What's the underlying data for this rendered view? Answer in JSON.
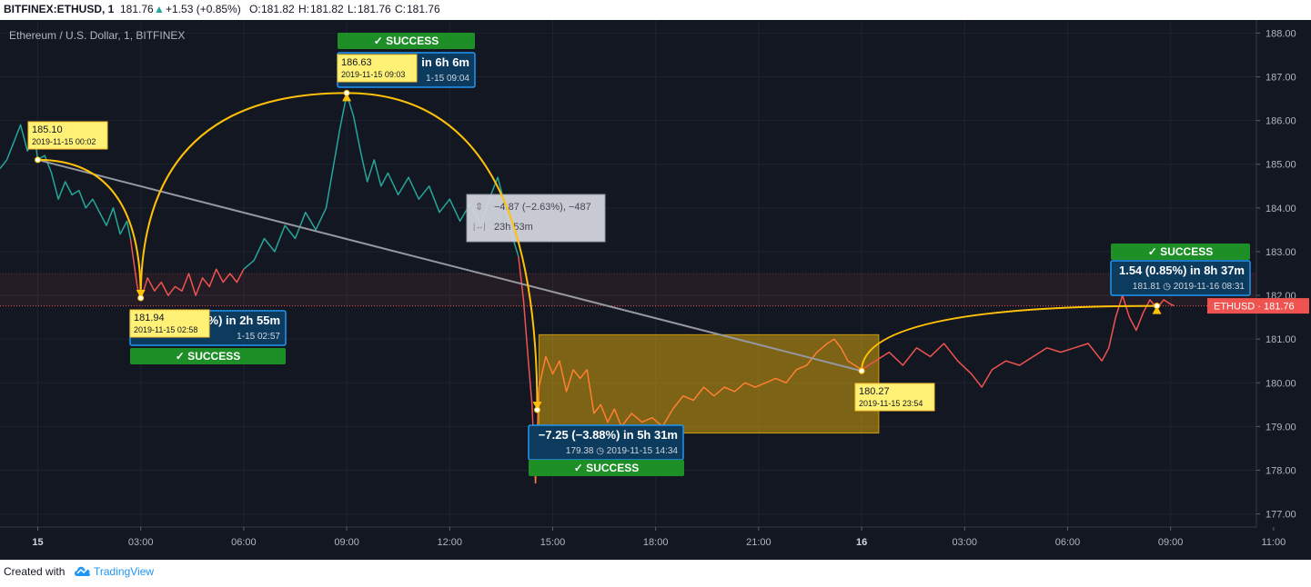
{
  "header": {
    "symbol": "BITFINEX:ETHUSD, 1",
    "last": "181.76",
    "change": "+1.53 (+0.85%)",
    "o_label": "O:",
    "o_value": "181.82",
    "h_label": "H:",
    "h_value": "181.82",
    "l_label": "L:",
    "l_value": "181.76",
    "c_label": "C:",
    "c_value": "181.76"
  },
  "footer": {
    "created": "Created with",
    "brand": "TradingView"
  },
  "chart_data": {
    "type": "line",
    "title": "Ethereum / U.S. Dollar, 1, BITFINEX",
    "ylim": [
      176.7,
      188.3
    ],
    "xlim_hours": [
      -1.1,
      35.5
    ],
    "y_ticks": [
      "188.00",
      "187.00",
      "186.00",
      "185.00",
      "184.00",
      "183.00",
      "182.00",
      "181.00",
      "180.00",
      "179.00",
      "178.00",
      "177.00"
    ],
    "x_ticks": [
      {
        "h": 0,
        "label": "15",
        "bold": true
      },
      {
        "h": 3,
        "label": "03:00"
      },
      {
        "h": 6,
        "label": "06:00"
      },
      {
        "h": 9,
        "label": "09:00"
      },
      {
        "h": 12,
        "label": "12:00"
      },
      {
        "h": 15,
        "label": "15:00"
      },
      {
        "h": 18,
        "label": "18:00"
      },
      {
        "h": 21,
        "label": "21:00"
      },
      {
        "h": 24,
        "label": "16",
        "bold": true
      },
      {
        "h": 27,
        "label": "03:00"
      },
      {
        "h": 30,
        "label": "06:00"
      },
      {
        "h": 33,
        "label": "09:00"
      },
      {
        "h": 36,
        "label": "11:00"
      }
    ],
    "price_label": {
      "text": "ETHUSD · 181.76",
      "y": 181.76
    },
    "colors": {
      "bg": "#131722",
      "teal": "#26a69a",
      "red": "#ef5350",
      "orange": "#ff7f33",
      "yellow": "#ffeb3b",
      "gray": "#9598a1",
      "blue": "#2196f3",
      "green": "#1e8f27"
    },
    "series": [
      {
        "color": "#26a69a",
        "points": [
          [
            -1.1,
            184.9
          ],
          [
            -0.9,
            185.1
          ],
          [
            -0.7,
            185.5
          ],
          [
            -0.5,
            185.9
          ],
          [
            -0.3,
            185.3
          ],
          [
            -0.1,
            185.7
          ],
          [
            0.0,
            185.1
          ],
          [
            0.2,
            185.2
          ],
          [
            0.4,
            184.8
          ],
          [
            0.6,
            184.2
          ],
          [
            0.8,
            184.6
          ],
          [
            1.0,
            184.3
          ],
          [
            1.2,
            184.4
          ],
          [
            1.4,
            184.0
          ],
          [
            1.6,
            184.2
          ],
          [
            1.8,
            183.9
          ],
          [
            2.0,
            183.6
          ],
          [
            2.2,
            184.0
          ],
          [
            2.4,
            183.4
          ],
          [
            2.6,
            183.7
          ],
          [
            2.7,
            183.3
          ]
        ]
      },
      {
        "color": "#ef5350",
        "points": [
          [
            2.7,
            183.3
          ],
          [
            2.9,
            182.2
          ],
          [
            3.0,
            181.9
          ],
          [
            3.2,
            182.4
          ],
          [
            3.4,
            182.1
          ],
          [
            3.6,
            182.3
          ],
          [
            3.8,
            182.0
          ],
          [
            4.0,
            182.2
          ],
          [
            4.2,
            182.1
          ],
          [
            4.4,
            182.5
          ],
          [
            4.6,
            182.0
          ],
          [
            4.8,
            182.4
          ],
          [
            5.0,
            182.2
          ],
          [
            5.2,
            182.6
          ],
          [
            5.4,
            182.3
          ],
          [
            5.6,
            182.5
          ],
          [
            5.8,
            182.3
          ],
          [
            6.0,
            182.6
          ]
        ]
      },
      {
        "color": "#26a69a",
        "points": [
          [
            6.0,
            182.6
          ],
          [
            6.3,
            182.8
          ],
          [
            6.6,
            183.3
          ],
          [
            6.9,
            183.0
          ],
          [
            7.2,
            183.6
          ],
          [
            7.5,
            183.3
          ],
          [
            7.8,
            183.9
          ],
          [
            8.1,
            183.5
          ],
          [
            8.4,
            184.0
          ],
          [
            8.6,
            184.9
          ],
          [
            8.8,
            185.8
          ],
          [
            9.0,
            186.6
          ],
          [
            9.2,
            186.1
          ],
          [
            9.4,
            185.3
          ],
          [
            9.6,
            184.6
          ],
          [
            9.8,
            185.1
          ],
          [
            10.0,
            184.5
          ],
          [
            10.2,
            184.8
          ],
          [
            10.5,
            184.3
          ],
          [
            10.8,
            184.7
          ],
          [
            11.1,
            184.2
          ],
          [
            11.4,
            184.5
          ],
          [
            11.7,
            183.9
          ],
          [
            12.0,
            184.2
          ],
          [
            12.3,
            183.7
          ],
          [
            12.6,
            184.1
          ],
          [
            12.9,
            183.6
          ],
          [
            13.2,
            184.3
          ],
          [
            13.4,
            184.7
          ],
          [
            13.6,
            184.1
          ],
          [
            13.8,
            183.4
          ],
          [
            14.0,
            182.9
          ]
        ]
      },
      {
        "color": "#ef5350",
        "points": [
          [
            14.0,
            182.9
          ],
          [
            14.15,
            181.9
          ],
          [
            14.3,
            180.4
          ],
          [
            14.4,
            179.5
          ],
          [
            14.5,
            177.7
          ]
        ]
      },
      {
        "color": "#ff7f33",
        "points": [
          [
            14.5,
            177.7
          ],
          [
            14.6,
            179.9
          ],
          [
            14.8,
            180.6
          ],
          [
            15.0,
            180.2
          ],
          [
            15.2,
            180.5
          ],
          [
            15.4,
            179.8
          ],
          [
            15.6,
            180.3
          ],
          [
            15.8,
            180.1
          ],
          [
            16.0,
            180.3
          ],
          [
            16.2,
            179.3
          ],
          [
            16.4,
            179.5
          ],
          [
            16.6,
            179.1
          ],
          [
            16.8,
            179.4
          ],
          [
            17.0,
            179.0
          ],
          [
            17.3,
            179.3
          ],
          [
            17.6,
            179.1
          ],
          [
            17.9,
            179.2
          ],
          [
            18.2,
            179.0
          ],
          [
            18.5,
            179.4
          ],
          [
            18.8,
            179.7
          ],
          [
            19.1,
            179.6
          ],
          [
            19.4,
            179.9
          ],
          [
            19.7,
            179.7
          ],
          [
            20.0,
            179.9
          ],
          [
            20.3,
            179.8
          ],
          [
            20.6,
            180.0
          ],
          [
            20.9,
            179.9
          ],
          [
            21.2,
            180.0
          ],
          [
            21.5,
            180.1
          ],
          [
            21.8,
            180.0
          ],
          [
            22.1,
            180.3
          ],
          [
            22.4,
            180.4
          ],
          [
            22.7,
            180.7
          ],
          [
            23.0,
            180.9
          ],
          [
            23.2,
            181.0
          ],
          [
            23.4,
            180.8
          ],
          [
            23.6,
            180.5
          ],
          [
            23.8,
            180.4
          ],
          [
            24.0,
            180.3
          ]
        ]
      },
      {
        "color": "#ef5350",
        "points": [
          [
            24.0,
            180.3
          ],
          [
            24.4,
            180.5
          ],
          [
            24.8,
            180.7
          ],
          [
            25.2,
            180.4
          ],
          [
            25.6,
            180.8
          ],
          [
            26.0,
            180.6
          ],
          [
            26.4,
            180.9
          ],
          [
            26.8,
            180.5
          ],
          [
            27.2,
            180.2
          ],
          [
            27.5,
            179.9
          ],
          [
            27.8,
            180.3
          ],
          [
            28.2,
            180.5
          ],
          [
            28.6,
            180.4
          ],
          [
            29.0,
            180.6
          ],
          [
            29.4,
            180.8
          ],
          [
            29.8,
            180.7
          ],
          [
            30.2,
            180.8
          ],
          [
            30.6,
            180.9
          ],
          [
            31.0,
            180.5
          ],
          [
            31.2,
            180.8
          ],
          [
            31.4,
            181.5
          ],
          [
            31.6,
            182.0
          ],
          [
            31.8,
            181.5
          ],
          [
            32.0,
            181.2
          ],
          [
            32.2,
            181.6
          ],
          [
            32.4,
            181.9
          ],
          [
            32.6,
            181.7
          ],
          [
            32.8,
            181.9
          ],
          [
            33.0,
            181.8
          ],
          [
            33.1,
            181.76
          ]
        ]
      }
    ],
    "price_box": {
      "h1": 14.6,
      "h2": 24.5,
      "y1": 181.1,
      "y2": 178.85
    },
    "trend_line": {
      "from": [
        0.0,
        185.1
      ],
      "to": [
        24.0,
        180.27
      ],
      "label": "−4.87 (−2.63%), −487",
      "label2": "23h 53m"
    },
    "arcs": [
      {
        "from": [
          0.0,
          185.1
        ],
        "to": [
          3.0,
          181.94
        ]
      },
      {
        "from": [
          3.0,
          181.94
        ],
        "to": [
          9.0,
          186.63
        ]
      },
      {
        "from": [
          9.0,
          186.63
        ],
        "to": [
          14.55,
          179.38
        ]
      },
      {
        "from": [
          24.0,
          180.27
        ],
        "to": [
          32.6,
          181.76
        ]
      }
    ],
    "points_yellow": [
      {
        "h": 0.0,
        "y": 185.1,
        "price": "185.10",
        "time": "2019-11-15 00:02"
      },
      {
        "h": 3.0,
        "y": 181.94,
        "price": "181.94",
        "time": "2019-11-15 02:58"
      },
      {
        "h": 9.0,
        "y": 186.63,
        "price": "186.63",
        "time": "2019-11-15 09:03"
      },
      {
        "h": 24.0,
        "y": 180.27,
        "price": "180.27",
        "time": "2019-11-15 23:54"
      }
    ],
    "callouts": [
      {
        "text1": "%) in 2h 55m",
        "text2": "1-15  02:57",
        "status": "SUCCESS"
      },
      {
        "text1": "in 6h 6m",
        "text2": "1-15  09:04",
        "status": "SUCCESS"
      },
      {
        "text1": "−7.25 (−3.88%) in 5h 31m",
        "text2": "179.38 ◷ 2019-11-15  14:34",
        "status": "SUCCESS"
      },
      {
        "text1": "1.54 (0.85%) in 8h 37m",
        "text2": "181.81 ◷ 2019-11-16  08:31",
        "status": "SUCCESS"
      }
    ]
  }
}
